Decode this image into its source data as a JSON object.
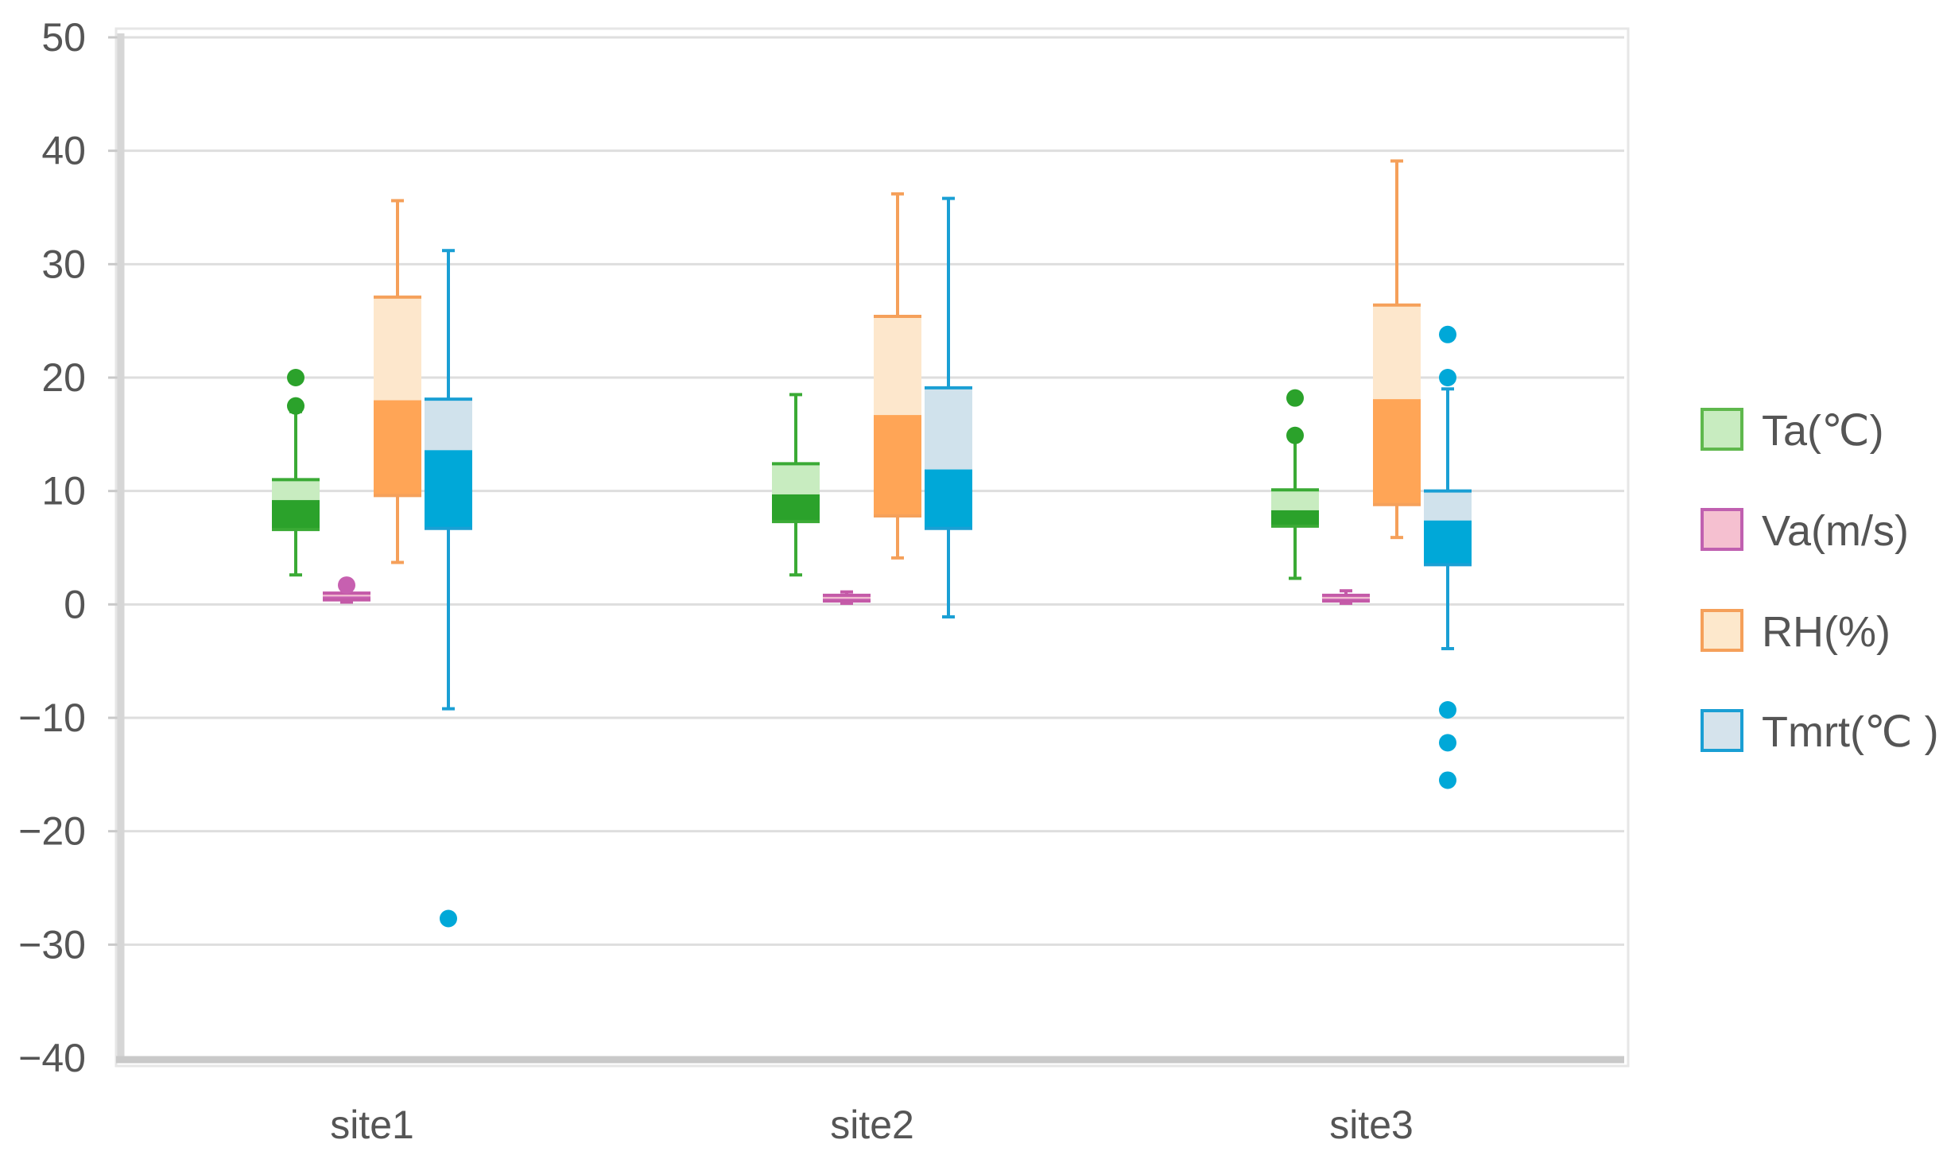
{
  "chart_data": {
    "type": "boxplot",
    "title": "",
    "xlabel": "",
    "ylabel": "",
    "ylim": [
      -40,
      50
    ],
    "yticks": [
      -40,
      -30,
      -20,
      -10,
      0,
      10,
      20,
      30,
      40,
      50
    ],
    "ytick_labels": [
      "−40",
      "−30",
      "−20",
      "−10",
      "0",
      "10",
      "20",
      "30",
      "40",
      "50"
    ],
    "grid": true,
    "legend_position": "right",
    "categories": [
      "site1",
      "site2",
      "site3"
    ],
    "series": [
      {
        "name": "Ta(℃)",
        "colors": {
          "line": "#3aaa35",
          "light": "#c8ecc0",
          "dark": "#2ba22b",
          "legend_fill": "#c8ecc0",
          "legend_border": "#5fb84d"
        },
        "boxes": [
          {
            "min": 2.6,
            "q1": 6.6,
            "median": 9.2,
            "q3": 11.0,
            "max": 17.0,
            "outliers": [
              17.5,
              20.0
            ]
          },
          {
            "min": 2.6,
            "q1": 7.3,
            "median": 9.7,
            "q3": 12.4,
            "max": 18.5,
            "outliers": []
          },
          {
            "min": 2.3,
            "q1": 6.9,
            "median": 8.3,
            "q3": 10.1,
            "max": 14.5,
            "outliers": [
              14.9,
              18.2
            ]
          }
        ]
      },
      {
        "name": "Va(m/s)",
        "colors": {
          "line": "#c45aa8",
          "light": "#f2bcd0",
          "dark": "#c760b0",
          "legend_fill": "#f5c0d0",
          "legend_border": "#c060b0"
        },
        "boxes": [
          {
            "min": 0.2,
            "q1": 0.4,
            "median": 0.7,
            "q3": 1.0,
            "max": 1.3,
            "outliers": [
              1.7
            ]
          },
          {
            "min": 0.1,
            "q1": 0.3,
            "median": 0.5,
            "q3": 0.8,
            "max": 1.1,
            "outliers": []
          },
          {
            "min": 0.1,
            "q1": 0.3,
            "median": 0.5,
            "q3": 0.8,
            "max": 1.2,
            "outliers": []
          }
        ]
      },
      {
        "name": "RH(%)",
        "colors": {
          "line": "#f5a05a",
          "light": "#fde7cc",
          "dark": "#ffa556",
          "legend_fill": "#fde8cc",
          "legend_border": "#f5a05a"
        },
        "boxes": [
          {
            "min": 3.7,
            "q1": 9.6,
            "median": 18.0,
            "q3": 27.1,
            "max": 35.6,
            "outliers": []
          },
          {
            "min": 4.1,
            "q1": 7.8,
            "median": 16.7,
            "q3": 25.4,
            "max": 36.2,
            "outliers": []
          },
          {
            "min": 5.9,
            "q1": 8.8,
            "median": 18.1,
            "q3": 26.4,
            "max": 39.1,
            "outliers": []
          }
        ]
      },
      {
        "name": "Tmrt(℃ )",
        "colors": {
          "line": "#1a9fd4",
          "light": "#d0e2ec",
          "dark": "#00a8d8",
          "legend_fill": "#d5e3ec",
          "legend_border": "#1a9fd4"
        },
        "boxes": [
          {
            "min": -9.2,
            "q1": 6.7,
            "median": 13.6,
            "q3": 18.1,
            "max": 31.2,
            "outliers": [
              -27.7
            ]
          },
          {
            "min": -1.1,
            "q1": 6.7,
            "median": 11.9,
            "q3": 19.1,
            "max": 35.8,
            "outliers": []
          },
          {
            "min": -3.9,
            "q1": 3.5,
            "median": 7.4,
            "q3": 10.0,
            "max": 19.0,
            "outliers": [
              23.8,
              20.0,
              -9.3,
              -12.2,
              -15.5
            ]
          }
        ]
      }
    ]
  }
}
